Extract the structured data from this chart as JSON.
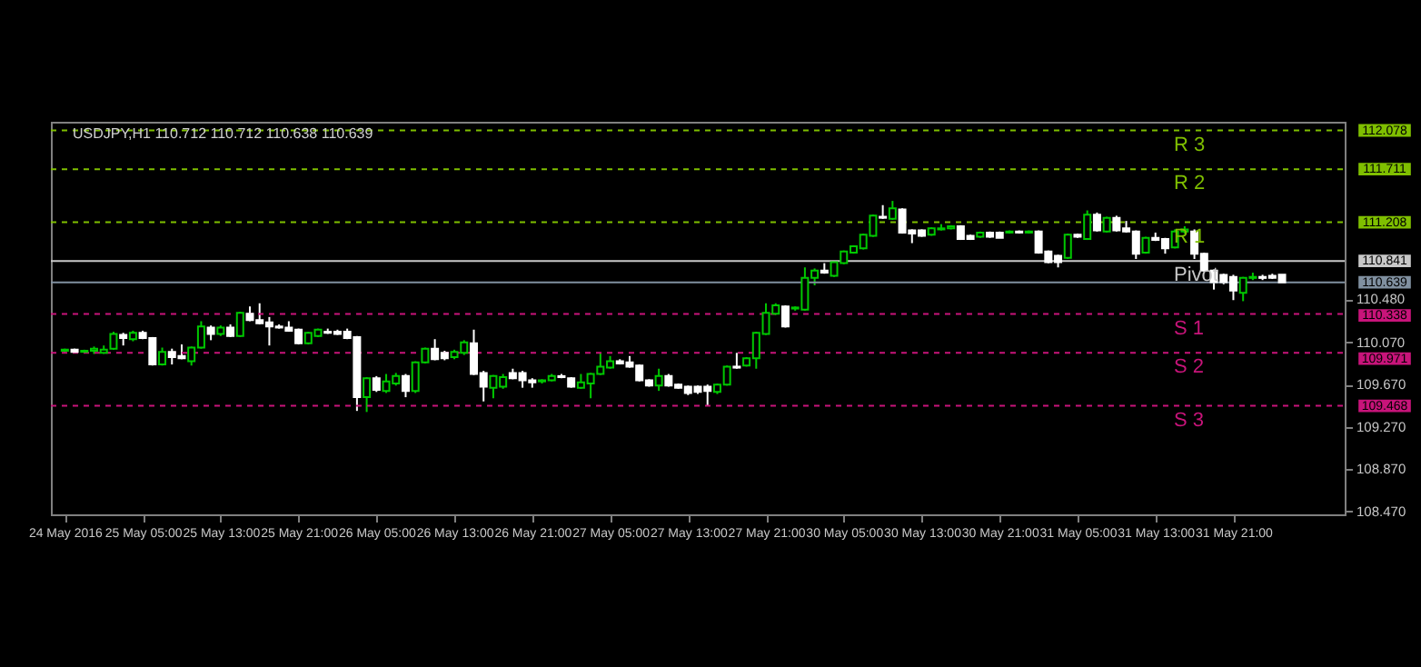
{
  "chart_data": {
    "type": "candlestick",
    "title": "USDJPY,H1 110.712 110.712 110.638 110.639",
    "categories": [
      "24 May 2016",
      null,
      null,
      null,
      null,
      null,
      null,
      null,
      "25 May 05:00",
      null,
      null,
      null,
      null,
      null,
      null,
      null,
      "25 May 13:00",
      null,
      null,
      null,
      null,
      null,
      null,
      null,
      "25 May 21:00",
      null,
      null,
      null,
      null,
      null,
      null,
      null,
      "26 May 05:00",
      null,
      null,
      null,
      null,
      null,
      null,
      null,
      "26 May 13:00",
      null,
      null,
      null,
      null,
      null,
      null,
      null,
      "26 May 21:00",
      null,
      null,
      null,
      null,
      null,
      null,
      null,
      "27 May 05:00",
      null,
      null,
      null,
      null,
      null,
      null,
      null,
      "27 May 13:00",
      null,
      null,
      null,
      null,
      null,
      null,
      null,
      "27 May 21:00",
      null,
      null,
      null,
      null,
      null,
      null,
      null,
      "30 May 05:00",
      null,
      null,
      null,
      null,
      null,
      null,
      null,
      "30 May 13:00",
      null,
      null,
      null,
      null,
      null,
      null,
      null,
      "30 May 21:00",
      null,
      null,
      null,
      null,
      null,
      null,
      null,
      "31 May 05:00",
      null,
      null,
      null,
      null,
      null,
      null,
      null,
      "31 May 13:00",
      null,
      null,
      null,
      null,
      null,
      null,
      null,
      "31 May 21:00",
      null,
      null,
      null,
      null,
      null
    ],
    "ohlc": [
      [
        109.99,
        110.01,
        109.97,
        110.0
      ],
      [
        110.0,
        110.01,
        109.97,
        109.98
      ],
      [
        109.98,
        110.0,
        109.97,
        109.99
      ],
      [
        109.99,
        110.03,
        109.96,
        110.01
      ],
      [
        109.97,
        110.04,
        109.96,
        110.0
      ],
      [
        110.01,
        110.17,
        110.0,
        110.15
      ],
      [
        110.14,
        110.16,
        110.04,
        110.11
      ],
      [
        110.1,
        110.18,
        110.08,
        110.16
      ],
      [
        110.16,
        110.18,
        110.1,
        110.11
      ],
      [
        110.11,
        110.12,
        109.85,
        109.86
      ],
      [
        109.86,
        110.02,
        109.85,
        109.98
      ],
      [
        109.98,
        110.01,
        109.86,
        109.93
      ],
      [
        109.94,
        110.05,
        109.91,
        109.92
      ],
      [
        109.89,
        110.03,
        109.85,
        110.02
      ],
      [
        110.02,
        110.27,
        110.01,
        110.22
      ],
      [
        110.21,
        110.23,
        110.09,
        110.15
      ],
      [
        110.15,
        110.23,
        110.13,
        110.21
      ],
      [
        110.21,
        110.24,
        110.12,
        110.13
      ],
      [
        110.13,
        110.36,
        110.12,
        110.35
      ],
      [
        110.34,
        110.41,
        110.27,
        110.28
      ],
      [
        110.28,
        110.44,
        110.24,
        110.25
      ],
      [
        110.26,
        110.31,
        110.04,
        110.22
      ],
      [
        110.22,
        110.24,
        110.2,
        110.21
      ],
      [
        110.21,
        110.27,
        110.17,
        110.18
      ],
      [
        110.19,
        110.2,
        110.05,
        110.06
      ],
      [
        110.06,
        110.17,
        110.05,
        110.16
      ],
      [
        110.13,
        110.2,
        110.12,
        110.19
      ],
      [
        110.17,
        110.2,
        110.15,
        110.16
      ],
      [
        110.17,
        110.19,
        110.14,
        110.15
      ],
      [
        110.17,
        110.2,
        110.1,
        110.11
      ],
      [
        110.12,
        110.13,
        109.42,
        109.55
      ],
      [
        109.55,
        109.74,
        109.41,
        109.73
      ],
      [
        109.73,
        109.75,
        109.6,
        109.62
      ],
      [
        109.61,
        109.77,
        109.59,
        109.7
      ],
      [
        109.68,
        109.78,
        109.66,
        109.75
      ],
      [
        109.75,
        109.77,
        109.55,
        109.61
      ],
      [
        109.61,
        109.89,
        109.59,
        109.88
      ],
      [
        109.88,
        110.02,
        109.87,
        110.01
      ],
      [
        110.01,
        110.1,
        109.9,
        109.91
      ],
      [
        109.97,
        109.99,
        109.9,
        109.92
      ],
      [
        109.93,
        110.0,
        109.91,
        109.98
      ],
      [
        109.97,
        110.09,
        109.95,
        110.07
      ],
      [
        110.06,
        110.19,
        109.76,
        109.77
      ],
      [
        109.78,
        109.8,
        109.51,
        109.65
      ],
      [
        109.64,
        109.76,
        109.54,
        109.75
      ],
      [
        109.65,
        109.77,
        109.63,
        109.74
      ],
      [
        109.78,
        109.82,
        109.72,
        109.73
      ],
      [
        109.78,
        109.8,
        109.64,
        109.71
      ],
      [
        109.71,
        109.73,
        109.64,
        109.69
      ],
      [
        109.7,
        109.72,
        109.68,
        109.71
      ],
      [
        109.71,
        109.77,
        109.7,
        109.75
      ],
      [
        109.75,
        109.77,
        109.73,
        109.74
      ],
      [
        109.73,
        109.74,
        109.64,
        109.65
      ],
      [
        109.64,
        109.77,
        109.63,
        109.69
      ],
      [
        109.68,
        109.78,
        109.54,
        109.77
      ],
      [
        109.77,
        109.97,
        109.76,
        109.84
      ],
      [
        109.83,
        109.94,
        109.82,
        109.89
      ],
      [
        109.89,
        109.91,
        109.86,
        109.87
      ],
      [
        109.88,
        109.94,
        109.83,
        109.84
      ],
      [
        109.85,
        109.86,
        109.7,
        109.71
      ],
      [
        109.71,
        109.72,
        109.65,
        109.66
      ],
      [
        109.66,
        109.82,
        109.61,
        109.75
      ],
      [
        109.75,
        109.77,
        109.65,
        109.66
      ],
      [
        109.67,
        109.68,
        109.63,
        109.64
      ],
      [
        109.65,
        109.66,
        109.57,
        109.59
      ],
      [
        109.65,
        109.66,
        109.58,
        109.6
      ],
      [
        109.65,
        109.67,
        109.47,
        109.61
      ],
      [
        109.6,
        109.68,
        109.58,
        109.67
      ],
      [
        109.67,
        109.85,
        109.66,
        109.84
      ],
      [
        109.84,
        109.97,
        109.82,
        109.83
      ],
      [
        109.85,
        109.93,
        109.84,
        109.92
      ],
      [
        109.92,
        110.17,
        109.82,
        110.16
      ],
      [
        110.15,
        110.44,
        110.14,
        110.35
      ],
      [
        110.34,
        110.44,
        110.33,
        110.42
      ],
      [
        110.41,
        110.42,
        110.21,
        110.22
      ],
      [
        110.39,
        110.41,
        110.37,
        110.4
      ],
      [
        110.38,
        110.78,
        110.37,
        110.68
      ],
      [
        110.68,
        110.77,
        110.61,
        110.75
      ],
      [
        110.75,
        110.82,
        110.72,
        110.73
      ],
      [
        110.7,
        110.84,
        110.69,
        110.83
      ],
      [
        110.82,
        110.94,
        110.81,
        110.93
      ],
      [
        110.92,
        110.99,
        110.91,
        110.98
      ],
      [
        110.96,
        111.1,
        110.95,
        111.09
      ],
      [
        111.08,
        111.28,
        111.07,
        111.27
      ],
      [
        111.26,
        111.37,
        111.24,
        111.25
      ],
      [
        111.24,
        111.41,
        111.23,
        111.34
      ],
      [
        111.33,
        111.34,
        111.1,
        111.11
      ],
      [
        111.13,
        111.14,
        111.01,
        111.1
      ],
      [
        111.13,
        111.14,
        111.07,
        111.08
      ],
      [
        111.09,
        111.16,
        111.08,
        111.15
      ],
      [
        111.14,
        111.19,
        111.13,
        111.15
      ],
      [
        111.15,
        111.18,
        111.14,
        111.17
      ],
      [
        111.17,
        111.18,
        111.04,
        111.05
      ],
      [
        111.08,
        111.09,
        111.04,
        111.05
      ],
      [
        111.07,
        111.12,
        111.06,
        111.11
      ],
      [
        111.11,
        111.12,
        111.06,
        111.07
      ],
      [
        111.11,
        111.12,
        111.06,
        111.06
      ],
      [
        111.11,
        111.13,
        111.1,
        111.12
      ],
      [
        111.12,
        111.13,
        111.1,
        111.11
      ],
      [
        111.11,
        111.13,
        111.1,
        111.12
      ],
      [
        111.12,
        111.13,
        110.91,
        110.92
      ],
      [
        110.93,
        110.94,
        110.82,
        110.83
      ],
      [
        110.89,
        110.9,
        110.78,
        110.83
      ],
      [
        110.87,
        111.1,
        110.86,
        111.09
      ],
      [
        111.09,
        111.1,
        111.06,
        111.07
      ],
      [
        111.05,
        111.32,
        111.04,
        111.28
      ],
      [
        111.28,
        111.3,
        111.12,
        111.13
      ],
      [
        111.12,
        111.26,
        111.11,
        111.25
      ],
      [
        111.25,
        111.27,
        111.12,
        111.13
      ],
      [
        111.15,
        111.22,
        111.11,
        111.12
      ],
      [
        111.12,
        111.13,
        110.86,
        110.91
      ],
      [
        110.92,
        111.07,
        110.91,
        111.06
      ],
      [
        111.06,
        111.11,
        111.03,
        111.04
      ],
      [
        111.05,
        111.06,
        110.91,
        110.96
      ],
      [
        110.97,
        111.14,
        110.96,
        111.12
      ],
      [
        111.12,
        111.17,
        111.1,
        111.14
      ],
      [
        111.12,
        111.14,
        110.86,
        110.91
      ],
      [
        110.91,
        110.92,
        110.74,
        110.75
      ],
      [
        110.75,
        110.76,
        110.57,
        110.64
      ],
      [
        110.71,
        110.72,
        110.62,
        110.64
      ],
      [
        110.69,
        110.71,
        110.47,
        110.56
      ],
      [
        110.54,
        110.69,
        110.46,
        110.68
      ],
      [
        110.68,
        110.73,
        110.66,
        110.69
      ],
      [
        110.69,
        110.71,
        110.66,
        110.68
      ],
      [
        110.7,
        110.72,
        110.67,
        110.68
      ],
      [
        110.712,
        110.712,
        110.638,
        110.639
      ]
    ],
    "colors": [
      "#00c800",
      "#ffffff",
      "#00c800",
      "#00c800",
      "#00c800",
      "#00c800",
      "#ffffff",
      "#00c800",
      "#ffffff",
      "#ffffff",
      "#00c800",
      "#ffffff",
      "#ffffff",
      "#00c800",
      "#00c800",
      "#ffffff",
      "#00c800",
      "#ffffff",
      "#00c800",
      "#ffffff",
      "#ffffff",
      "#ffffff",
      "#ffffff",
      "#ffffff",
      "#ffffff",
      "#00c800",
      "#00c800",
      "#ffffff",
      "#ffffff",
      "#ffffff",
      "#ffffff",
      "#00c800",
      "#ffffff",
      "#00c800",
      "#00c800",
      "#ffffff",
      "#00c800",
      "#00c800",
      "#ffffff",
      "#ffffff",
      "#00c800",
      "#00c800",
      "#ffffff",
      "#ffffff",
      "#00c800",
      "#00c800",
      "#ffffff",
      "#ffffff",
      "#ffffff",
      "#00c800",
      "#00c800",
      "#ffffff",
      "#ffffff",
      "#00c800",
      "#00c800",
      "#00c800",
      "#00c800",
      "#ffffff",
      "#ffffff",
      "#ffffff",
      "#ffffff",
      "#00c800",
      "#ffffff",
      "#ffffff",
      "#ffffff",
      "#ffffff",
      "#ffffff",
      "#00c800",
      "#00c800",
      "#ffffff",
      "#00c800",
      "#00c800",
      "#00c800",
      "#00c800",
      "#ffffff",
      "#00c800",
      "#00c800",
      "#00c800",
      "#ffffff",
      "#00c800",
      "#00c800",
      "#00c800",
      "#00c800",
      "#00c800",
      "#ffffff",
      "#00c800",
      "#ffffff",
      "#ffffff",
      "#ffffff",
      "#00c800",
      "#00c800",
      "#00c800",
      "#ffffff",
      "#ffffff",
      "#00c800",
      "#ffffff",
      "#ffffff",
      "#00c800",
      "#ffffff",
      "#00c800",
      "#ffffff",
      "#ffffff",
      "#ffffff",
      "#00c800",
      "#ffffff",
      "#00c800",
      "#ffffff",
      "#00c800",
      "#ffffff",
      "#ffffff",
      "#ffffff",
      "#00c800",
      "#ffffff",
      "#ffffff",
      "#00c800",
      "#00c800",
      "#ffffff",
      "#ffffff",
      "#ffffff",
      "#ffffff",
      "#ffffff",
      "#00c800",
      "#00c800",
      "#ffffff",
      "#ffffff",
      "#ffffff"
    ],
    "ylim": [
      108.44,
      112.16
    ],
    "yticks": [
      {
        "value": 108.47,
        "label": "108.470"
      },
      {
        "value": 108.87,
        "label": "108.870"
      },
      {
        "value": 109.27,
        "label": "109.270"
      },
      {
        "value": 109.67,
        "label": "109.670"
      },
      {
        "value": 110.07,
        "label": "110.070"
      },
      {
        "value": 110.48,
        "label": "110.480"
      }
    ],
    "annotations": [
      "112.078",
      "111.711",
      "111.208",
      "110.841",
      "110.639",
      "110.338",
      "109.971",
      "109.468"
    ],
    "ref_lines": [
      {
        "axis": "y",
        "value": 112.078,
        "label": "R 3",
        "color": "#7fbf00",
        "line_style": "dashed"
      },
      {
        "axis": "y",
        "value": 111.711,
        "label": "R 2",
        "color": "#7fbf00",
        "line_style": "dashed"
      },
      {
        "axis": "y",
        "value": 111.208,
        "label": "R 1",
        "color": "#7fbf00",
        "line_style": "dashed"
      },
      {
        "axis": "y",
        "value": 110.841,
        "label": "Pivot",
        "color": "#c8c8c8",
        "line_style": "solid"
      },
      {
        "axis": "y",
        "value": 110.639,
        "label": null,
        "color": "#8090a0",
        "line_style": "solid"
      },
      {
        "axis": "y",
        "value": 110.338,
        "label": "S 1",
        "color": "#c8147a",
        "line_style": "dashed"
      },
      {
        "axis": "y",
        "value": 109.971,
        "label": "S 2",
        "color": "#c8147a",
        "line_style": "dashed"
      },
      {
        "axis": "y",
        "value": 109.468,
        "label": "S 3",
        "color": "#c8147a",
        "line_style": "dashed"
      }
    ]
  }
}
